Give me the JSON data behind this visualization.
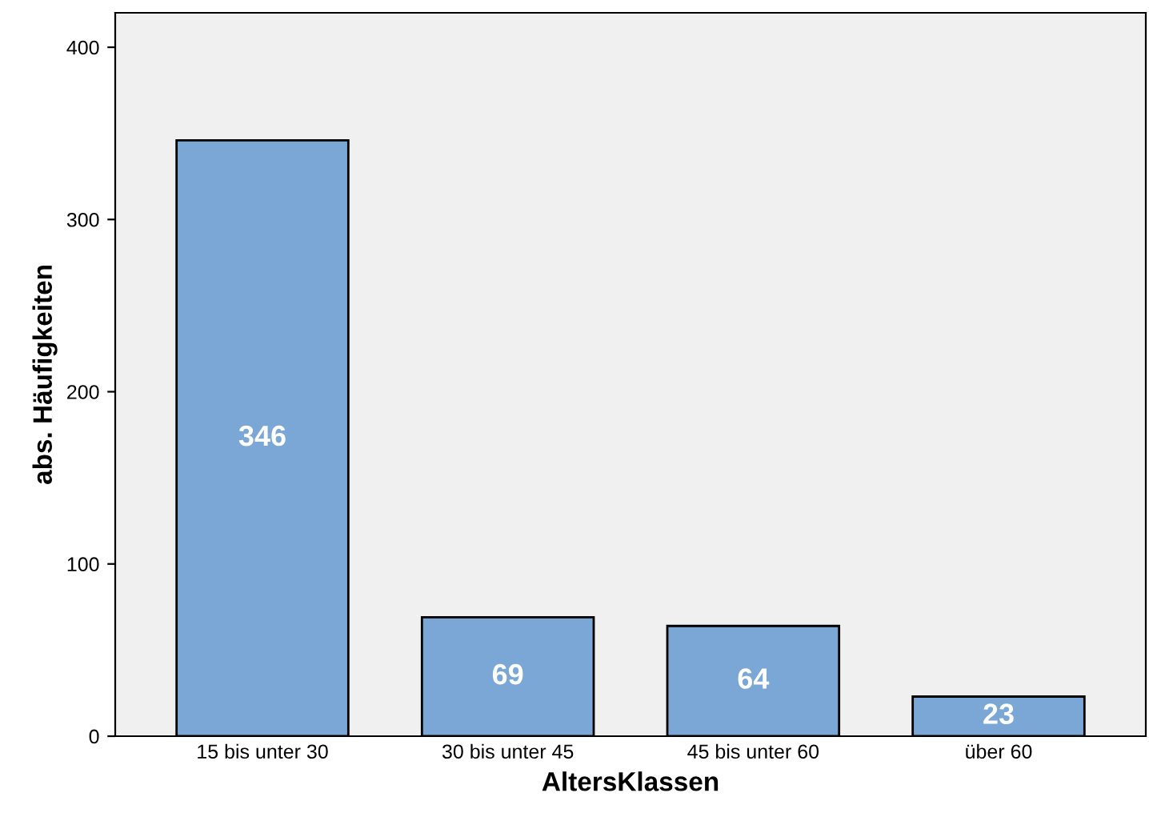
{
  "chart_data": {
    "type": "bar",
    "xlabel": "AltersKlassen",
    "ylabel": "abs. Häufigkeiten",
    "categories": [
      "15 bis unter 30",
      "30 bis unter 45",
      "45 bis unter 60",
      "über 60"
    ],
    "values": [
      346,
      69,
      64,
      23
    ],
    "color": "#7ba7d6",
    "ylim": [
      0,
      420
    ],
    "yticks": [
      0,
      100,
      200,
      300,
      400
    ],
    "grid": false,
    "data_labels": true
  }
}
